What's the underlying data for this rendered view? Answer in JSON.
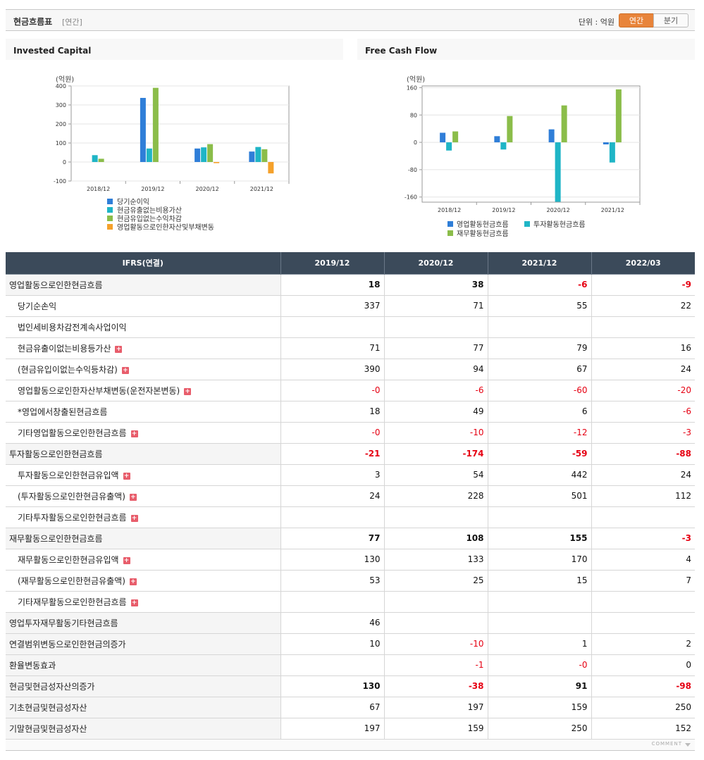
{
  "header": {
    "title": "현금흐름표",
    "subtitle": "[연간]",
    "unit": "단위 : 억원",
    "tab_annual": "연간",
    "tab_quarter": "분기"
  },
  "chart_data": [
    {
      "type": "bar",
      "title": "Invested Capital",
      "ylabel": "(억원)",
      "categories": [
        "2018/12",
        "2019/12",
        "2020/12",
        "2021/12"
      ],
      "yticks": [
        "400",
        "300",
        "200",
        "100",
        "0",
        "-100"
      ],
      "ylim": [
        -100,
        400
      ],
      "series": [
        {
          "name": "당기순이익",
          "color": "#2f7ed8",
          "values": [
            0,
            337,
            71,
            55
          ]
        },
        {
          "name": "현금유출없는비용가산",
          "color": "#1fb5c6",
          "values": [
            36,
            71,
            77,
            79
          ]
        },
        {
          "name": "현금유입없는수익차감",
          "color": "#8bbd4a",
          "values": [
            17,
            390,
            94,
            67
          ]
        },
        {
          "name": "영업활동으로인한자산및부채변동",
          "color": "#f5a12b",
          "values": [
            0,
            0,
            -6,
            -60
          ]
        }
      ]
    },
    {
      "type": "bar",
      "title": "Free Cash Flow",
      "ylabel": "(억원)",
      "categories": [
        "2018/12",
        "2019/12",
        "2020/12",
        "2021/12"
      ],
      "yticks": [
        "160",
        "80",
        "0",
        "-80",
        "-160"
      ],
      "ylim": [
        -175,
        165
      ],
      "series": [
        {
          "name": "영업활동현금흐름",
          "color": "#2f7ed8",
          "values": [
            28,
            18,
            38,
            -6
          ]
        },
        {
          "name": "투자활동현금흐름",
          "color": "#1fb5c6",
          "values": [
            -24,
            -21,
            -174,
            -59
          ]
        },
        {
          "name": "재무활동현금흐름",
          "color": "#8bbd4a",
          "values": [
            32,
            77,
            108,
            155
          ]
        }
      ]
    }
  ],
  "table": {
    "corner": "IFRS(연결)",
    "columns": [
      "2019/12",
      "2020/12",
      "2021/12",
      "2022/03"
    ],
    "rows": [
      {
        "label": "영업활동으로인한현금흐름",
        "level": 0,
        "group": true,
        "main": true,
        "plus": false,
        "values": [
          "18",
          "38",
          "-6",
          "-9"
        ]
      },
      {
        "label": "당기순손익",
        "level": 1,
        "plus": false,
        "values": [
          "337",
          "71",
          "55",
          "22"
        ]
      },
      {
        "label": "법인세비용차감전계속사업이익",
        "level": 1,
        "plus": false,
        "values": [
          "",
          "",
          "",
          ""
        ]
      },
      {
        "label": "현금유출이없는비용등가산",
        "level": 1,
        "plus": true,
        "values": [
          "71",
          "77",
          "79",
          "16"
        ]
      },
      {
        "label": "(현금유입이없는수익등차감)",
        "level": 1,
        "plus": true,
        "values": [
          "390",
          "94",
          "67",
          "24"
        ]
      },
      {
        "label": "영업활동으로인한자산부채변동(운전자본변동)",
        "level": 1,
        "plus": true,
        "values": [
          "-0",
          "-6",
          "-60",
          "-20"
        ]
      },
      {
        "label": "*영업에서창출된현금흐름",
        "level": 1,
        "plus": false,
        "values": [
          "18",
          "49",
          "6",
          "-6"
        ]
      },
      {
        "label": "기타영업활동으로인한현금흐름",
        "level": 1,
        "plus": true,
        "values": [
          "-0",
          "-10",
          "-12",
          "-3"
        ]
      },
      {
        "label": "투자활동으로인한현금흐름",
        "level": 0,
        "group": true,
        "main": true,
        "plus": false,
        "values": [
          "-21",
          "-174",
          "-59",
          "-88"
        ]
      },
      {
        "label": "투자활동으로인한현금유입액",
        "level": 1,
        "plus": true,
        "values": [
          "3",
          "54",
          "442",
          "24"
        ]
      },
      {
        "label": "(투자활동으로인한현금유출액)",
        "level": 1,
        "plus": true,
        "values": [
          "24",
          "228",
          "501",
          "112"
        ]
      },
      {
        "label": "기타투자활동으로인한현금흐름",
        "level": 1,
        "plus": true,
        "values": [
          "",
          "",
          "",
          ""
        ]
      },
      {
        "label": "재무활동으로인한현금흐름",
        "level": 0,
        "group": true,
        "main": true,
        "plus": false,
        "values": [
          "77",
          "108",
          "155",
          "-3"
        ]
      },
      {
        "label": "재무활동으로인한현금유입액",
        "level": 1,
        "plus": true,
        "values": [
          "130",
          "133",
          "170",
          "4"
        ]
      },
      {
        "label": "(재무활동으로인한현금유출액)",
        "level": 1,
        "plus": true,
        "values": [
          "53",
          "25",
          "15",
          "7"
        ]
      },
      {
        "label": "기타재무활동으로인한현금흐름",
        "level": 1,
        "plus": true,
        "values": [
          "",
          "",
          "",
          ""
        ]
      },
      {
        "label": "영업투자재무활동기타현금흐름",
        "level": 0,
        "group": true,
        "main": false,
        "plus": false,
        "values": [
          "46",
          "",
          "",
          ""
        ]
      },
      {
        "label": "연결범위변동으로인한현금의증가",
        "level": 0,
        "main": false,
        "plus": false,
        "values": [
          "10",
          "-10",
          "1",
          "2"
        ]
      },
      {
        "label": "환율변동효과",
        "level": 0,
        "main": false,
        "plus": false,
        "values": [
          "",
          "-1",
          "-0",
          "0"
        ]
      },
      {
        "label": "현금및현금성자산의증가",
        "level": 0,
        "main": true,
        "plus": false,
        "values": [
          "130",
          "-38",
          "91",
          "-98"
        ]
      },
      {
        "label": "기초현금및현금성자산",
        "level": 0,
        "main": false,
        "plus": false,
        "values": [
          "67",
          "197",
          "159",
          "250"
        ]
      },
      {
        "label": "기말현금및현금성자산",
        "level": 0,
        "main": false,
        "plus": false,
        "values": [
          "197",
          "159",
          "250",
          "152"
        ]
      }
    ]
  },
  "footer": {
    "comment": "COMMENT"
  }
}
